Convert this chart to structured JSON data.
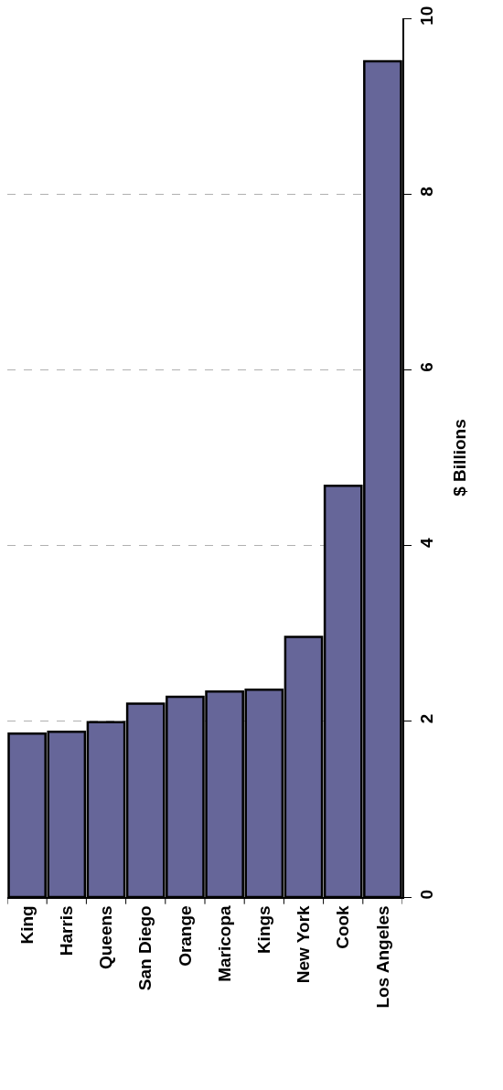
{
  "chart_data": {
    "type": "bar",
    "categories": [
      "King",
      "Harris",
      "Queens",
      "San Diego",
      "Orange",
      "Maricopa",
      "Kings",
      "New York",
      "Cook",
      "Los Angeles"
    ],
    "values": [
      1.86,
      1.88,
      1.99,
      2.2,
      2.28,
      2.34,
      2.36,
      2.96,
      4.68,
      9.51
    ],
    "color": "#666699",
    "ylabel": "$ Billions",
    "ylim": [
      0,
      10
    ],
    "yticks": [
      0,
      2,
      4,
      6,
      8,
      10
    ],
    "grid": "y"
  }
}
